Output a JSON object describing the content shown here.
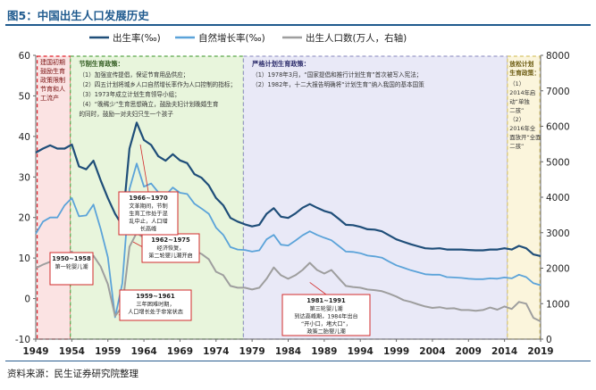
{
  "figure": {
    "title": "图5：中国出生人口发展历史",
    "source": "资料来源：民生证券研究院整理"
  },
  "colors": {
    "birth_rate": "#1f4e79",
    "growth_rate": "#5ba3d9",
    "births": "#9e9e9e",
    "phase1_fill": "#fbe3e3",
    "phase1_border": "#e0202a",
    "phase2_fill": "#e8f5dc",
    "phase2_border": "#5aa64a",
    "phase3_fill": "#e9e9f7",
    "phase3_border": "#9a9ac8",
    "phase4_fill": "#fbf5dc",
    "phase4_border": "#d8c56a",
    "callout_border": "#d22b2b"
  },
  "chart_data": {
    "type": "line",
    "x_ticks": [
      "1949",
      "1954",
      "1959",
      "1964",
      "1969",
      "1974",
      "1979",
      "1984",
      "1989",
      "1994",
      "1999",
      "2004",
      "2009",
      "2014",
      "2019"
    ],
    "xlim": [
      1949,
      2019
    ],
    "ylim_left": [
      -10,
      60
    ],
    "yticks_left": [
      -10,
      0,
      10,
      20,
      30,
      40,
      50,
      60
    ],
    "ylim_right": [
      0,
      8000
    ],
    "yticks_right": [
      0,
      1000,
      2000,
      3000,
      4000,
      5000,
      6000,
      7000,
      8000
    ],
    "grid": false,
    "legend_position": "top",
    "series": [
      {
        "name": "出生率(‰)",
        "axis": "left",
        "x": [
          1949,
          1950,
          1951,
          1952,
          1953,
          1954,
          1955,
          1956,
          1957,
          1958,
          1959,
          1960,
          1961,
          1962,
          1963,
          1964,
          1965,
          1966,
          1967,
          1968,
          1969,
          1970,
          1971,
          1972,
          1973,
          1974,
          1975,
          1976,
          1977,
          1978,
          1979,
          1980,
          1981,
          1982,
          1983,
          1984,
          1985,
          1986,
          1987,
          1988,
          1989,
          1990,
          1991,
          1992,
          1993,
          1994,
          1995,
          1996,
          1997,
          1998,
          1999,
          2000,
          2001,
          2002,
          2003,
          2004,
          2005,
          2006,
          2007,
          2008,
          2009,
          2010,
          2011,
          2012,
          2013,
          2014,
          2015,
          2016,
          2017,
          2018,
          2019
        ],
        "values": [
          36.0,
          37.0,
          37.8,
          37.0,
          37.0,
          38.0,
          32.6,
          31.9,
          34.0,
          29.2,
          24.8,
          20.9,
          18.0,
          37.0,
          43.4,
          39.1,
          37.9,
          35.1,
          34.0,
          35.6,
          34.1,
          33.4,
          30.7,
          29.8,
          27.9,
          24.8,
          23.0,
          19.9,
          19.0,
          18.3,
          17.8,
          18.2,
          20.9,
          22.3,
          20.2,
          19.9,
          21.0,
          22.4,
          23.3,
          22.4,
          21.6,
          21.1,
          19.7,
          18.2,
          18.1,
          17.7,
          17.1,
          17.0,
          16.6,
          15.6,
          14.6,
          14.0,
          13.4,
          12.9,
          12.4,
          12.3,
          12.4,
          12.1,
          12.1,
          12.1,
          12.0,
          11.9,
          11.9,
          12.1,
          12.1,
          12.4,
          12.1,
          13.0,
          12.4,
          10.9,
          10.5
        ]
      },
      {
        "name": "自然增长率(‰)",
        "axis": "left",
        "x": [
          1949,
          1950,
          1951,
          1952,
          1953,
          1954,
          1955,
          1956,
          1957,
          1958,
          1959,
          1960,
          1961,
          1962,
          1963,
          1964,
          1965,
          1966,
          1967,
          1968,
          1969,
          1970,
          1971,
          1972,
          1973,
          1974,
          1975,
          1976,
          1977,
          1978,
          1979,
          1980,
          1981,
          1982,
          1983,
          1984,
          1985,
          1986,
          1987,
          1988,
          1989,
          1990,
          1991,
          1992,
          1993,
          1994,
          1995,
          1996,
          1997,
          1998,
          1999,
          2000,
          2001,
          2002,
          2003,
          2004,
          2005,
          2006,
          2007,
          2008,
          2009,
          2010,
          2011,
          2012,
          2013,
          2014,
          2015,
          2016,
          2017,
          2018,
          2019
        ],
        "values": [
          16.0,
          19.0,
          20.0,
          20.0,
          23.0,
          24.8,
          20.3,
          20.5,
          23.2,
          17.2,
          10.2,
          -4.6,
          3.8,
          27.0,
          33.3,
          27.6,
          28.4,
          26.2,
          25.5,
          27.4,
          26.1,
          25.8,
          23.4,
          22.2,
          20.9,
          17.5,
          15.7,
          12.7,
          12.1,
          12.0,
          11.6,
          11.9,
          14.6,
          15.7,
          13.3,
          13.1,
          14.3,
          15.6,
          16.6,
          15.7,
          15.0,
          14.4,
          13.0,
          11.6,
          11.5,
          11.2,
          10.6,
          10.4,
          10.1,
          9.1,
          8.2,
          7.6,
          7.0,
          6.5,
          6.0,
          5.9,
          5.9,
          5.3,
          5.2,
          5.1,
          4.9,
          4.8,
          4.8,
          5.0,
          4.9,
          5.2,
          5.0,
          5.9,
          5.3,
          3.8,
          3.3
        ]
      },
      {
        "name": "出生人口数(万人，右轴)",
        "axis": "right",
        "x": [
          1949,
          1950,
          1951,
          1952,
          1953,
          1954,
          1955,
          1956,
          1957,
          1958,
          1959,
          1960,
          1961,
          1962,
          1963,
          1964,
          1965,
          1966,
          1967,
          1968,
          1969,
          1970,
          1971,
          1972,
          1973,
          1974,
          1975,
          1976,
          1977,
          1978,
          1979,
          1980,
          1981,
          1982,
          1983,
          1984,
          1985,
          1986,
          1987,
          1988,
          1989,
          1990,
          1991,
          1992,
          1993,
          1994,
          1995,
          1996,
          1997,
          1998,
          1999,
          2000,
          2001,
          2002,
          2003,
          2004,
          2005,
          2006,
          2007,
          2008,
          2009,
          2010,
          2011,
          2012,
          2013,
          2014,
          2015,
          2016,
          2017,
          2018,
          2019
        ],
        "values": [
          2000,
          2100,
          2180,
          2200,
          2350,
          2470,
          2020,
          2050,
          2350,
          2050,
          1550,
          650,
          920,
          2600,
          3000,
          2850,
          2860,
          2650,
          2620,
          2820,
          2700,
          2700,
          2500,
          2400,
          2250,
          1900,
          1800,
          1500,
          1450,
          1450,
          1400,
          1450,
          1700,
          2020,
          1800,
          1700,
          1800,
          1950,
          2150,
          1950,
          1850,
          1950,
          1720,
          1500,
          1470,
          1450,
          1400,
          1380,
          1350,
          1280,
          1200,
          1100,
          1050,
          980,
          920,
          880,
          900,
          860,
          870,
          820,
          820,
          800,
          820,
          890,
          830,
          920,
          850,
          1050,
          1000,
          600,
          500
        ]
      }
    ],
    "phases": [
      {
        "title": "建国初期鼓励生育政策：",
        "lines": [
          "限制节育和人工流产"
        ]
      },
      {
        "title": "节制生育政策：",
        "lines": [
          "（1）加强宣传提倡，保证节育用品供应；",
          "（2）四五计划将城乡人口自然增长率作为人口控制的指标；",
          "（3）1973年成立计划生育领导小组；",
          "（4）“晚稀少”生育思想确立，鼓励夫妇计划晚婚生育",
          "的同时，鼓励一对夫妇只生一个孩子"
        ]
      },
      {
        "title": "严格计划生育政策：",
        "lines": [
          "（1）1978年3月，“国家提倡和推行计划生育”首次被写入宪法；",
          "（2）1982年，十二大报告明确将“计划生育”纳入我国的基本国策"
        ]
      },
      {
        "title": "放松计划生育政策：",
        "lines": [
          "（1）",
          "2014年启",
          "动“单独",
          "二孩”",
          "（2）",
          "2016年全",
          "面放开“全面",
          "二孩”"
        ]
      }
    ],
    "annotations": [
      {
        "year": "1950~1958",
        "text": [
          "第一轮婴儿潮"
        ]
      },
      {
        "year": "1959~1961",
        "text": [
          "三年困难时期，",
          "人口增长处于非常状态"
        ]
      },
      {
        "year": "1962~1975",
        "text": [
          "经济恢复，",
          "第二轮婴儿潮开启"
        ]
      },
      {
        "year": "1966~1970",
        "text": [
          "文革期间，节制",
          "生育工作处于混",
          "乱中止，人口增",
          "长高峰"
        ]
      },
      {
        "year": "1981~1991",
        "text": [
          "第三轮婴儿潮",
          "到达高峰期，1984年出台",
          "“开小口，堵大口”，",
          "政策二胎婴儿潮"
        ]
      }
    ]
  }
}
